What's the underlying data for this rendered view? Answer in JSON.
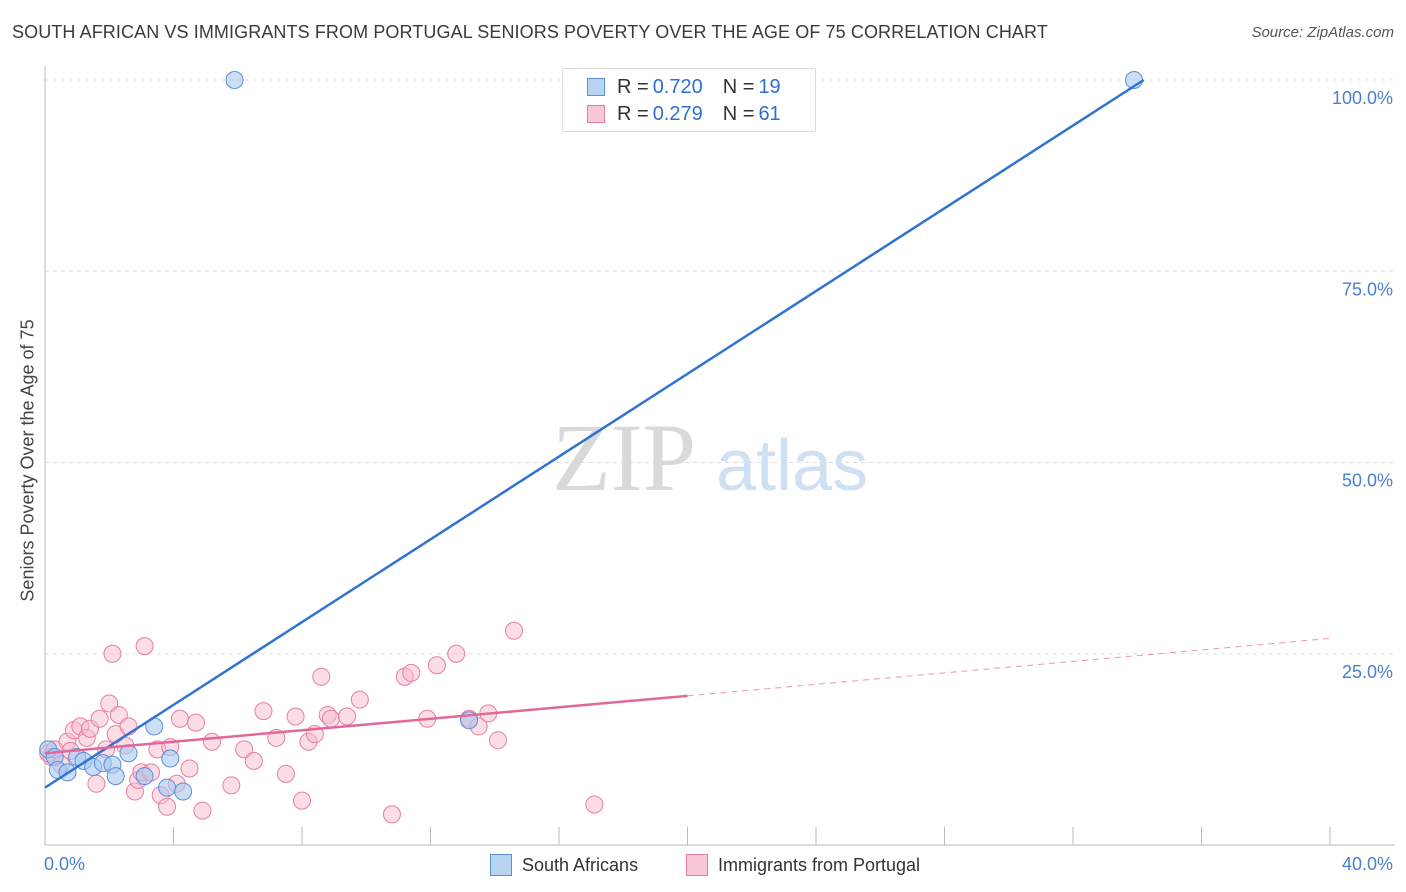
{
  "title": "SOUTH AFRICAN VS IMMIGRANTS FROM PORTUGAL SENIORS POVERTY OVER THE AGE OF 75 CORRELATION CHART",
  "source": "Source: ZipAtlas.com",
  "watermark": {
    "zip": "ZIP",
    "atlas": "atlas"
  },
  "colors": {
    "blue_fill": "#a8c8f0",
    "blue_edge": "#5b8fd6",
    "blue_line": "#2f74d0",
    "pink_fill": "#f7bccd",
    "pink_edge": "#e77fa0",
    "pink_line": "#e0689a",
    "axis_text": "#4a7fd0",
    "grid": "#dddddd"
  },
  "legend": {
    "rows": [
      {
        "r_label": "R = ",
        "r_value": "0.720",
        "n_label": "N = ",
        "n_value": "19"
      },
      {
        "r_label": "R = ",
        "r_value": "0.279",
        "n_label": "N = ",
        "n_value": "61"
      }
    ]
  },
  "bottom_legend": {
    "series1": "South Africans",
    "series2": "Immigrants from Portugal"
  },
  "chart_data": {
    "type": "scatter",
    "xlabel": "",
    "ylabel": "Seniors Poverty Over the Age of 75",
    "xlim": [
      0,
      40
    ],
    "ylim": [
      0,
      100
    ],
    "x_tick_labels": [
      "0.0%",
      "40.0%"
    ],
    "y_tick_labels": [
      "100.0%",
      "75.0%",
      "50.0%",
      "25.0%"
    ],
    "y_ticks": [
      100,
      75,
      50,
      25
    ],
    "grid": true,
    "series": [
      {
        "name": "South Africans",
        "color": "#5b8fd6",
        "points": [
          [
            0.1,
            12.5
          ],
          [
            0.3,
            11.5
          ],
          [
            0.4,
            9.8
          ],
          [
            0.7,
            9.5
          ],
          [
            1.0,
            11.5
          ],
          [
            1.2,
            11.0
          ],
          [
            1.5,
            10.2
          ],
          [
            1.8,
            10.7
          ],
          [
            2.1,
            10.5
          ],
          [
            2.2,
            9.0
          ],
          [
            2.6,
            12.0
          ],
          [
            3.1,
            9.0
          ],
          [
            3.4,
            15.5
          ],
          [
            3.8,
            7.5
          ],
          [
            3.9,
            11.3
          ],
          [
            4.3,
            7.0
          ],
          [
            5.9,
            100.0
          ],
          [
            13.2,
            16.3
          ],
          [
            33.9,
            100.0
          ]
        ],
        "trend": {
          "x1": 0.0,
          "y1": 7.5,
          "x2": 34.2,
          "y2": 100.0,
          "style": "solid"
        }
      },
      {
        "name": "Immigrants from Portugal",
        "color": "#e77fa0",
        "points": [
          [
            0.1,
            12.0
          ],
          [
            0.2,
            11.5
          ],
          [
            0.3,
            12.5
          ],
          [
            0.5,
            10.5
          ],
          [
            0.7,
            13.5
          ],
          [
            0.8,
            12.3
          ],
          [
            0.9,
            15.0
          ],
          [
            1.1,
            15.5
          ],
          [
            1.3,
            14.0
          ],
          [
            1.4,
            15.2
          ],
          [
            1.6,
            8.0
          ],
          [
            1.7,
            16.5
          ],
          [
            1.9,
            12.5
          ],
          [
            2.0,
            18.5
          ],
          [
            2.1,
            25.0
          ],
          [
            2.2,
            14.5
          ],
          [
            2.3,
            17.0
          ],
          [
            2.5,
            13.0
          ],
          [
            2.6,
            15.5
          ],
          [
            2.8,
            7.0
          ],
          [
            2.9,
            8.5
          ],
          [
            3.0,
            9.5
          ],
          [
            3.1,
            26.0
          ],
          [
            3.3,
            9.5
          ],
          [
            3.5,
            12.5
          ],
          [
            3.6,
            6.5
          ],
          [
            3.8,
            5.0
          ],
          [
            3.9,
            12.8
          ],
          [
            4.1,
            8.0
          ],
          [
            4.2,
            16.5
          ],
          [
            4.5,
            10.0
          ],
          [
            4.7,
            16.0
          ],
          [
            4.9,
            4.5
          ],
          [
            5.2,
            13.5
          ],
          [
            5.8,
            7.8
          ],
          [
            6.2,
            12.5
          ],
          [
            6.5,
            11.0
          ],
          [
            6.8,
            17.5
          ],
          [
            7.2,
            14.0
          ],
          [
            7.5,
            9.3
          ],
          [
            7.8,
            16.8
          ],
          [
            8.0,
            5.8
          ],
          [
            8.2,
            13.5
          ],
          [
            8.4,
            14.5
          ],
          [
            8.6,
            22.0
          ],
          [
            8.8,
            17.0
          ],
          [
            8.9,
            16.5
          ],
          [
            9.4,
            16.8
          ],
          [
            9.8,
            19.0
          ],
          [
            10.8,
            4.0
          ],
          [
            11.2,
            22.0
          ],
          [
            11.4,
            22.5
          ],
          [
            11.9,
            16.5
          ],
          [
            12.2,
            23.5
          ],
          [
            12.8,
            25.0
          ],
          [
            13.2,
            16.5
          ],
          [
            13.5,
            15.5
          ],
          [
            13.8,
            17.2
          ],
          [
            14.1,
            13.7
          ],
          [
            14.6,
            28.0
          ],
          [
            17.1,
            5.3
          ]
        ],
        "trend": {
          "x1": 0.0,
          "y1": 12.0,
          "x2": 20.0,
          "y2": 19.5,
          "style": "solid"
        },
        "trend_extension": {
          "x1": 20.0,
          "y1": 19.5,
          "x2": 40.0,
          "y2": 27.0,
          "style": "dashed"
        }
      }
    ]
  }
}
